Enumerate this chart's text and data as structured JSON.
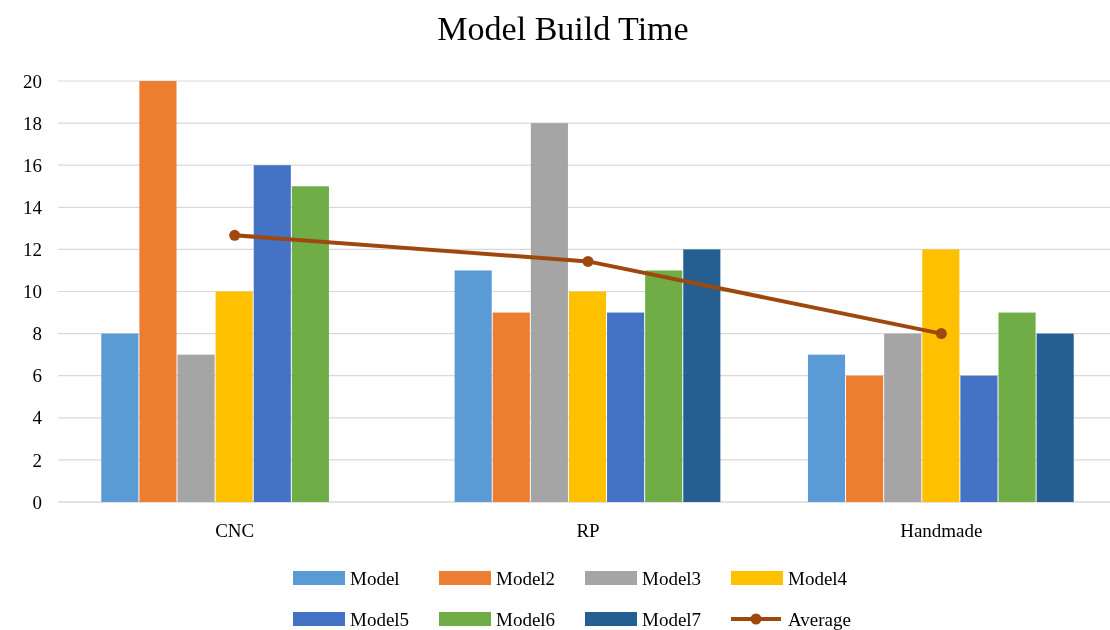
{
  "chart_data": {
    "type": "bar",
    "title": "Model Build Time",
    "categories": [
      "CNC",
      "RP",
      "Handmade"
    ],
    "series": [
      {
        "name": "Model",
        "color": "#5b9bd5",
        "values": [
          8,
          11,
          7
        ]
      },
      {
        "name": "Model2",
        "color": "#ed7d31",
        "values": [
          20,
          9,
          6
        ]
      },
      {
        "name": "Model3",
        "color": "#a5a5a5",
        "values": [
          7,
          18,
          8
        ]
      },
      {
        "name": "Model4",
        "color": "#ffc000",
        "values": [
          10,
          10,
          12
        ]
      },
      {
        "name": "Model5",
        "color": "#4472c4",
        "values": [
          16,
          9,
          6
        ]
      },
      {
        "name": "Model6",
        "color": "#70ad47",
        "values": [
          15,
          11,
          9
        ]
      },
      {
        "name": "Model7",
        "color": "#255e91",
        "values": [
          null,
          12,
          8
        ]
      },
      {
        "name": "Average",
        "type": "line",
        "color": "#9e480e",
        "marker": "circle",
        "values": [
          12.67,
          11.43,
          8
        ]
      }
    ],
    "ylim": [
      0,
      20
    ],
    "yticks": [
      0,
      2,
      4,
      6,
      8,
      10,
      12,
      14,
      16,
      18,
      20
    ],
    "grid": "y",
    "legend": "bottom"
  }
}
